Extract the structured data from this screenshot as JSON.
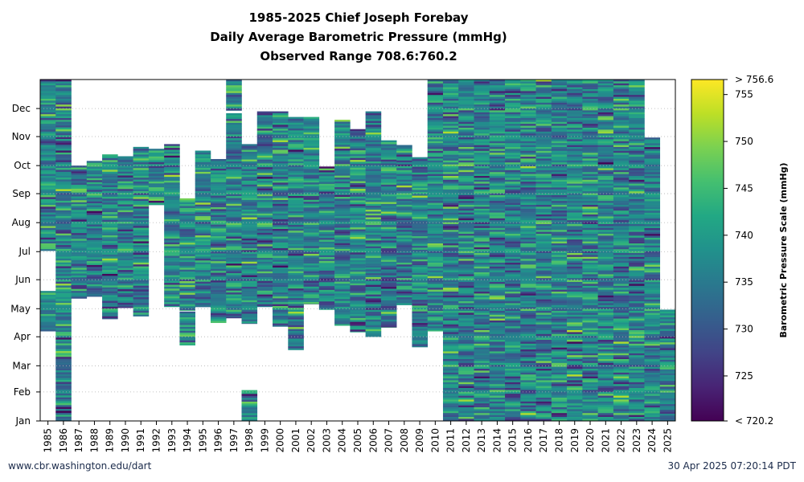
{
  "title": {
    "line1": "1985-2025 Chief Joseph Forebay",
    "line2": "Daily Average Barometric Pressure (mmHg)",
    "line3": "Observed Range 708.6:760.2"
  },
  "footer": {
    "left": "www.cbr.washington.edu/dart",
    "right": "30 Apr 2025 07:20:14 PDT"
  },
  "chart_data": {
    "type": "heatmap",
    "x_label": "",
    "years": [
      1985,
      1986,
      1987,
      1988,
      1989,
      1990,
      1991,
      1992,
      1993,
      1994,
      1995,
      1996,
      1997,
      1998,
      1999,
      2000,
      2001,
      2002,
      2003,
      2004,
      2005,
      2006,
      2007,
      2008,
      2009,
      2010,
      2011,
      2012,
      2013,
      2014,
      2015,
      2016,
      2017,
      2018,
      2019,
      2020,
      2021,
      2022,
      2023,
      2024,
      2025
    ],
    "y_ticks": [
      "Jan",
      "Feb",
      "Mar",
      "Apr",
      "May",
      "Jun",
      "Jul",
      "Aug",
      "Sep",
      "Oct",
      "Nov",
      "Dec"
    ],
    "y_tick_days": [
      1,
      32,
      60,
      91,
      121,
      152,
      182,
      213,
      244,
      274,
      305,
      335
    ],
    "day_range": [
      1,
      366
    ],
    "observed_days": [
      [
        [
          97,
          140
        ],
        [
          183,
          366
        ]
      ],
      [
        [
          1,
          323
        ],
        [
          323,
          366
        ]
      ],
      [
        [
          132,
          274
        ]
      ],
      [
        [
          134,
          279
        ]
      ],
      [
        [
          110,
          286
        ]
      ],
      [
        [
          122,
          284
        ]
      ],
      [
        [
          113,
          294
        ]
      ],
      [
        [
          232,
          292
        ]
      ],
      [
        [
          123,
          297
        ]
      ],
      [
        [
          82,
          118
        ],
        [
          119,
          239
        ]
      ],
      [
        [
          123,
          290
        ]
      ],
      [
        [
          106,
          281
        ]
      ],
      [
        [
          111,
          330
        ],
        [
          333,
          366
        ]
      ],
      [
        [
          1,
          34
        ],
        [
          105,
          297
        ]
      ],
      [
        [
          123,
          332
        ]
      ],
      [
        [
          102,
          332
        ]
      ],
      [
        [
          77,
          326
        ]
      ],
      [
        [
          126,
          326
        ]
      ],
      [
        [
          120,
          273
        ]
      ],
      [
        [
          103,
          323
        ]
      ],
      [
        [
          96,
          313
        ]
      ],
      [
        [
          91,
          332
        ]
      ],
      [
        [
          101,
          301
        ]
      ],
      [
        [
          125,
          296
        ]
      ],
      [
        [
          80,
          283
        ]
      ],
      [
        [
          97,
          366
        ]
      ],
      [
        [
          1,
          366
        ]
      ],
      [
        [
          1,
          366
        ]
      ],
      [
        [
          1,
          366
        ]
      ],
      [
        [
          1,
          366
        ]
      ],
      [
        [
          1,
          366
        ]
      ],
      [
        [
          1,
          366
        ]
      ],
      [
        [
          1,
          366
        ]
      ],
      [
        [
          1,
          366
        ]
      ],
      [
        [
          1,
          366
        ]
      ],
      [
        [
          1,
          366
        ]
      ],
      [
        [
          1,
          366
        ]
      ],
      [
        [
          1,
          366
        ]
      ],
      [
        [
          1,
          366
        ]
      ],
      [
        [
          1,
          304
        ]
      ],
      [
        [
          1,
          120
        ]
      ]
    ],
    "colorbar": {
      "label": "Barometric Pressure Scale (mmHg)",
      "min": 720.2,
      "max": 756.6,
      "ticks": [
        725,
        730,
        735,
        740,
        745,
        750,
        755
      ],
      "min_label": "< 720.2",
      "max_label": "> 756.6",
      "colormap": "viridis"
    },
    "observed_range": [
      708.6,
      760.2
    ],
    "grid": "dotted horizontal at month ticks"
  }
}
